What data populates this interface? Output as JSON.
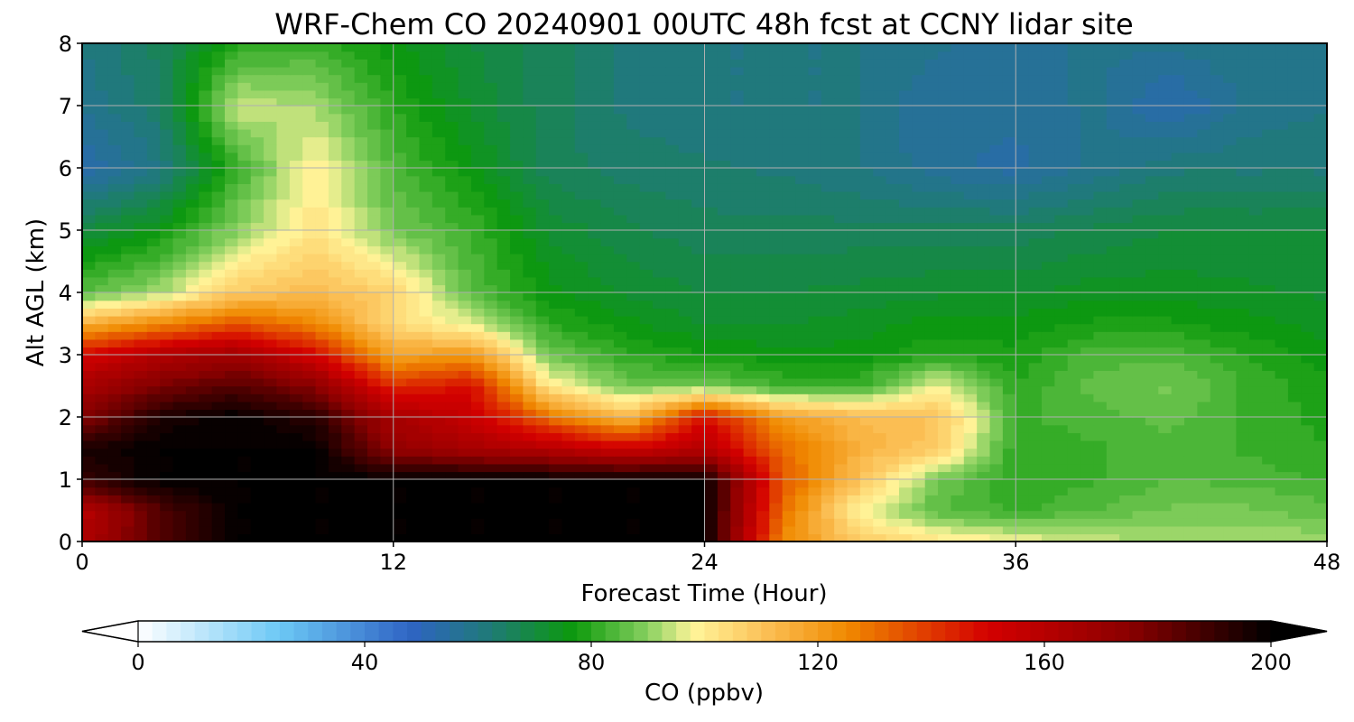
{
  "chart_data": {
    "type": "heatmap",
    "title": "WRF-Chem CO  20240901 00UTC 48h fcst at CCNY lidar site",
    "xlabel": "Forecast Time (Hour)",
    "ylabel": "Alt AGL (km)",
    "xlim": [
      0,
      48
    ],
    "ylim": [
      0,
      8
    ],
    "x_ticks": [
      "0",
      "12",
      "24",
      "36",
      "48"
    ],
    "y_ticks": [
      "0",
      "1",
      "2",
      "3",
      "4",
      "5",
      "6",
      "7",
      "8"
    ],
    "grid": true,
    "x": [
      0,
      3,
      6,
      9,
      12,
      15,
      18,
      21,
      24,
      27,
      30,
      33,
      36,
      39,
      42,
      45,
      48
    ],
    "y": [
      0,
      0.5,
      1,
      1.5,
      2,
      2.5,
      3,
      3.5,
      4,
      5,
      6,
      7,
      8
    ],
    "z": [
      [
        162,
        185,
        200,
        200,
        200,
        200,
        200,
        200,
        200,
        125,
        108,
        102,
        98,
        94,
        92,
        92,
        92
      ],
      [
        160,
        185,
        200,
        200,
        200,
        200,
        200,
        200,
        200,
        130,
        98,
        85,
        82,
        85,
        88,
        88,
        86
      ],
      [
        190,
        200,
        200,
        200,
        200,
        200,
        200,
        200,
        200,
        135,
        110,
        88,
        80,
        82,
        85,
        84,
        82
      ],
      [
        196,
        200,
        200,
        200,
        172,
        165,
        160,
        152,
        160,
        130,
        115,
        108,
        80,
        82,
        84,
        82,
        80
      ],
      [
        175,
        195,
        200,
        192,
        165,
        155,
        130,
        112,
        148,
        120,
        112,
        110,
        82,
        84,
        86,
        82,
        79
      ],
      [
        165,
        178,
        185,
        175,
        142,
        148,
        100,
        88,
        88,
        82,
        82,
        98,
        80,
        86,
        88,
        82,
        78
      ],
      [
        150,
        162,
        168,
        150,
        118,
        122,
        88,
        80,
        78,
        76,
        76,
        80,
        78,
        84,
        84,
        80,
        76
      ],
      [
        115,
        125,
        135,
        125,
        104,
        96,
        80,
        76,
        72,
        72,
        74,
        76,
        76,
        78,
        78,
        76,
        74
      ],
      [
        85,
        92,
        108,
        112,
        106,
        85,
        76,
        72,
        70,
        70,
        71,
        72,
        72,
        74,
        74,
        73,
        72
      ],
      [
        70,
        76,
        90,
        102,
        88,
        82,
        72,
        68,
        66,
        66,
        66,
        66,
        66,
        68,
        70,
        70,
        70
      ],
      [
        52,
        60,
        82,
        100,
        84,
        76,
        66,
        64,
        63,
        62,
        60,
        56,
        54,
        58,
        62,
        62,
        62
      ],
      [
        58,
        64,
        95,
        92,
        80,
        72,
        66,
        62,
        60,
        60,
        60,
        55,
        56,
        58,
        52,
        58,
        60
      ],
      [
        60,
        66,
        80,
        82,
        76,
        70,
        66,
        62,
        60,
        60,
        60,
        58,
        56,
        58,
        58,
        60,
        60
      ]
    ],
    "colorbar": {
      "label": "CO  (ppbv)",
      "ticks": [
        "0",
        "40",
        "80",
        "120",
        "160",
        "200"
      ],
      "min": 0,
      "max": 200,
      "extend": "both",
      "stops": [
        {
          "v": 0,
          "c": "#ffffff"
        },
        {
          "v": 25,
          "c": "#6cc8f5"
        },
        {
          "v": 48,
          "c": "#2f64c4"
        },
        {
          "v": 62,
          "c": "#1f7a78"
        },
        {
          "v": 77,
          "c": "#0c9a0c"
        },
        {
          "v": 90,
          "c": "#88d060"
        },
        {
          "v": 98,
          "c": "#fff59a"
        },
        {
          "v": 110,
          "c": "#fcc35a"
        },
        {
          "v": 125,
          "c": "#f08a00"
        },
        {
          "v": 150,
          "c": "#d40000"
        },
        {
          "v": 175,
          "c": "#8a0000"
        },
        {
          "v": 200,
          "c": "#000000"
        }
      ]
    }
  }
}
